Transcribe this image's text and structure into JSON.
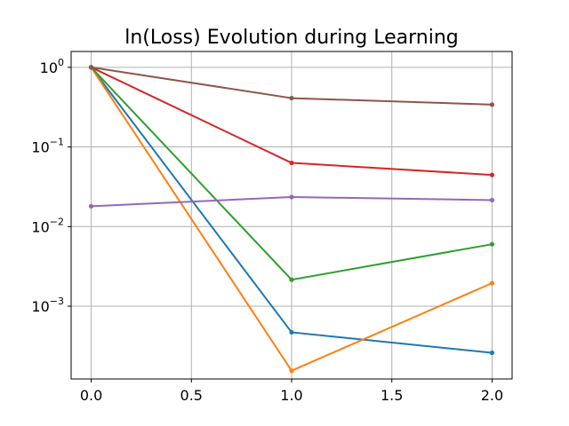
{
  "chart_data": {
    "type": "line",
    "title": "ln(Loss) Evolution during Learning",
    "xlabel": "",
    "ylabel": "",
    "x": [
      0.0,
      1.0,
      2.0
    ],
    "xlim": [
      -0.1,
      2.1
    ],
    "xticks": [
      "0.0",
      "0.5",
      "1.0",
      "1.5",
      "2.0"
    ],
    "xtick_values": [
      0.0,
      0.5,
      1.0,
      1.5,
      2.0
    ],
    "yscale": "log",
    "ylim": [
      0.000122,
      1.58
    ],
    "yticks": [
      {
        "value": 1,
        "base": "10",
        "exp": "0"
      },
      {
        "value": 0.1,
        "base": "10",
        "exp": "−1"
      },
      {
        "value": 0.01,
        "base": "10",
        "exp": "−2"
      },
      {
        "value": 0.001,
        "base": "10",
        "exp": "−3"
      }
    ],
    "grid": true,
    "series": [
      {
        "color": "#1f77b4",
        "values": [
          1.0,
          0.00047,
          0.00026
        ]
      },
      {
        "color": "#ff7f0e",
        "values": [
          1.0,
          0.000155,
          0.00195
        ]
      },
      {
        "color": "#2ca02c",
        "values": [
          1.0,
          0.00215,
          0.006
        ]
      },
      {
        "color": "#d62728",
        "values": [
          1.0,
          0.063,
          0.0445
        ]
      },
      {
        "color": "#9467bd",
        "values": [
          0.018,
          0.0235,
          0.0215
        ]
      },
      {
        "color": "#8c564b",
        "values": [
          1.0,
          0.41,
          0.34
        ]
      }
    ]
  }
}
